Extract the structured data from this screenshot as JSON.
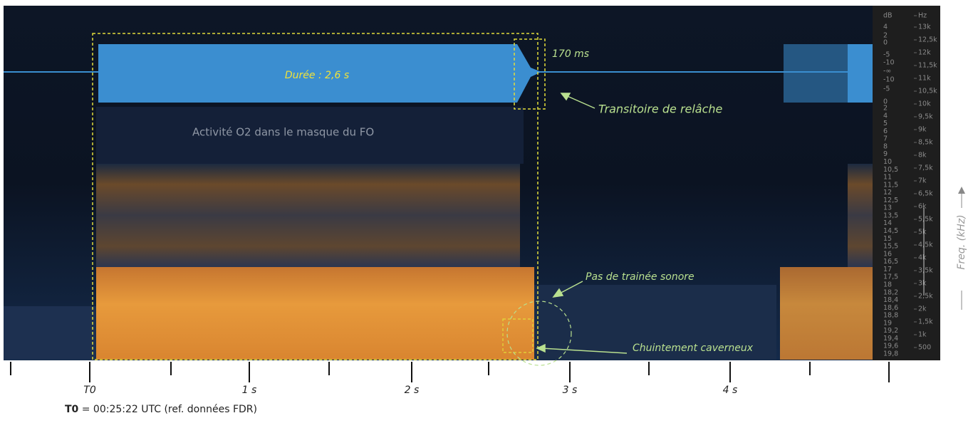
{
  "annotations": {
    "duration": "Durée : 2,6 s",
    "release_time": "170 ms",
    "release_transient": "Transitoire de relâche",
    "o2_activity": "Activité O2 dans le masque du FO",
    "no_trail": "Pas de trainée sonore",
    "hissing": "Chuintement caverneux"
  },
  "db_scale": [
    "dB",
    "4",
    "2",
    "0",
    "-5",
    "-10",
    "-∞",
    "-10",
    "-5",
    "0"
  ],
  "channel_scale": [
    "2",
    "4",
    "5",
    "6",
    "7",
    "8",
    "9",
    "10",
    "10,5",
    "11",
    "11,5",
    "12",
    "12,5",
    "13",
    "13,5",
    "14",
    "14,5",
    "15",
    "15,5",
    "16",
    "16,5",
    "17",
    "17,5",
    "18",
    "18,2",
    "18,4",
    "18,6",
    "18,8",
    "19",
    "19,2",
    "19,4",
    "19,6",
    "19,8"
  ],
  "hz_scale": [
    "Hz",
    "13k",
    "12,5k",
    "12k",
    "11,5k",
    "11k",
    "10,5k",
    "10k",
    "9,5k",
    "9k",
    "8,5k",
    "8k",
    "7,5k",
    "7k",
    "6,5k",
    "6k",
    "5,5k",
    "5k",
    "4,5k",
    "4k",
    "3,5k",
    "3k",
    "2,5k",
    "2k",
    "1,5k",
    "1k",
    "500"
  ],
  "freq_axis_label": "Freq. (kHz)",
  "time_labels": [
    "T0",
    "1 s",
    "2 s",
    "3 s",
    "4 s"
  ],
  "footnote": {
    "bold": "T0",
    "text": " = 00:25:22 UTC (ref. données FDR)"
  }
}
